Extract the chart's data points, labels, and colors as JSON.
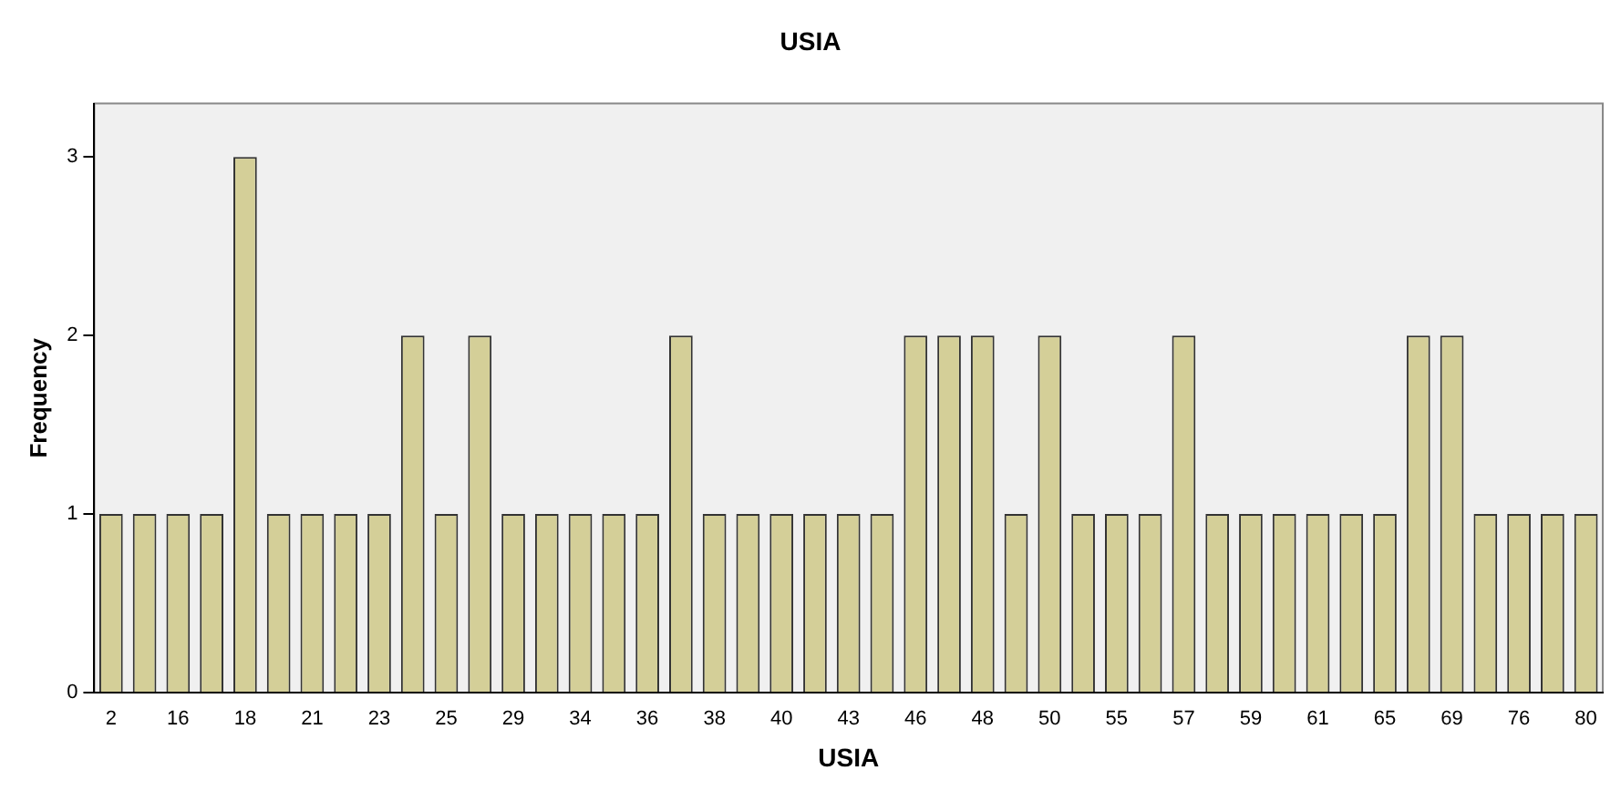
{
  "chart_data": {
    "type": "bar",
    "title": "USIA",
    "xlabel": "USIA",
    "ylabel": "Frequency",
    "categories": [
      "2",
      null,
      "16",
      null,
      "18",
      null,
      "21",
      null,
      "23",
      null,
      "25",
      null,
      "29",
      null,
      "34",
      null,
      "36",
      null,
      "38",
      null,
      "40",
      null,
      "43",
      null,
      "46",
      null,
      "48",
      null,
      "50",
      null,
      "55",
      null,
      "57",
      null,
      "59",
      null,
      "61",
      null,
      "65",
      null,
      "69",
      null,
      "76",
      null,
      "80"
    ],
    "values": [
      1,
      1,
      1,
      1,
      3,
      1,
      1,
      1,
      1,
      2,
      1,
      2,
      1,
      1,
      1,
      1,
      1,
      2,
      1,
      1,
      1,
      1,
      1,
      1,
      2,
      2,
      2,
      1,
      2,
      1,
      1,
      1,
      2,
      1,
      1,
      1,
      1,
      1,
      1,
      2,
      2,
      1,
      1,
      1,
      1
    ],
    "color": "#d4cf98",
    "ylim": [
      0,
      3.3
    ],
    "yticks": [
      0,
      1,
      2,
      3
    ],
    "grid": false,
    "legend": false
  }
}
